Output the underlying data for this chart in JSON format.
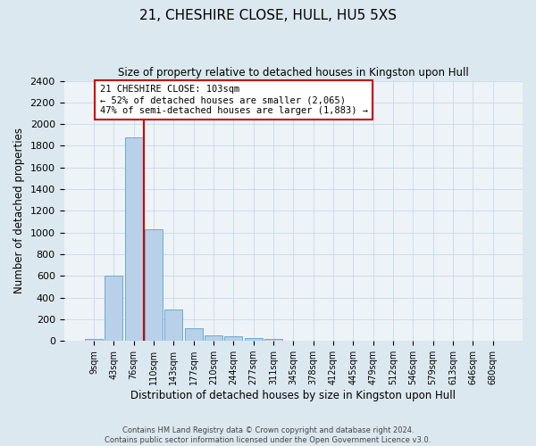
{
  "title": "21, CHESHIRE CLOSE, HULL, HU5 5XS",
  "subtitle": "Size of property relative to detached houses in Kingston upon Hull",
  "xlabel": "Distribution of detached houses by size in Kingston upon Hull",
  "ylabel": "Number of detached properties",
  "bar_labels": [
    "9sqm",
    "43sqm",
    "76sqm",
    "110sqm",
    "143sqm",
    "177sqm",
    "210sqm",
    "244sqm",
    "277sqm",
    "311sqm",
    "345sqm",
    "378sqm",
    "412sqm",
    "445sqm",
    "479sqm",
    "512sqm",
    "546sqm",
    "579sqm",
    "613sqm",
    "646sqm",
    "680sqm"
  ],
  "bar_values": [
    20,
    600,
    1880,
    1030,
    290,
    120,
    50,
    40,
    28,
    20,
    0,
    0,
    0,
    0,
    0,
    0,
    0,
    0,
    0,
    0,
    0
  ],
  "bar_color": "#b8d0e8",
  "bar_edge_color": "#6aaad4",
  "vline_x": 2.5,
  "vline_color": "#cc0000",
  "annotation_text": "21 CHESHIRE CLOSE: 103sqm\n← 52% of detached houses are smaller (2,065)\n47% of semi-detached houses are larger (1,883) →",
  "annotation_box_color": "white",
  "annotation_box_edge_color": "#cc0000",
  "ylim": [
    0,
    2400
  ],
  "yticks": [
    0,
    200,
    400,
    600,
    800,
    1000,
    1200,
    1400,
    1600,
    1800,
    2000,
    2200,
    2400
  ],
  "footnote": "Contains HM Land Registry data © Crown copyright and database right 2024.\nContains public sector information licensed under the Open Government Licence v3.0.",
  "bg_color": "#dce8f0",
  "plot_bg_color": "#eef3f8",
  "grid_color": "#c8d8e8"
}
